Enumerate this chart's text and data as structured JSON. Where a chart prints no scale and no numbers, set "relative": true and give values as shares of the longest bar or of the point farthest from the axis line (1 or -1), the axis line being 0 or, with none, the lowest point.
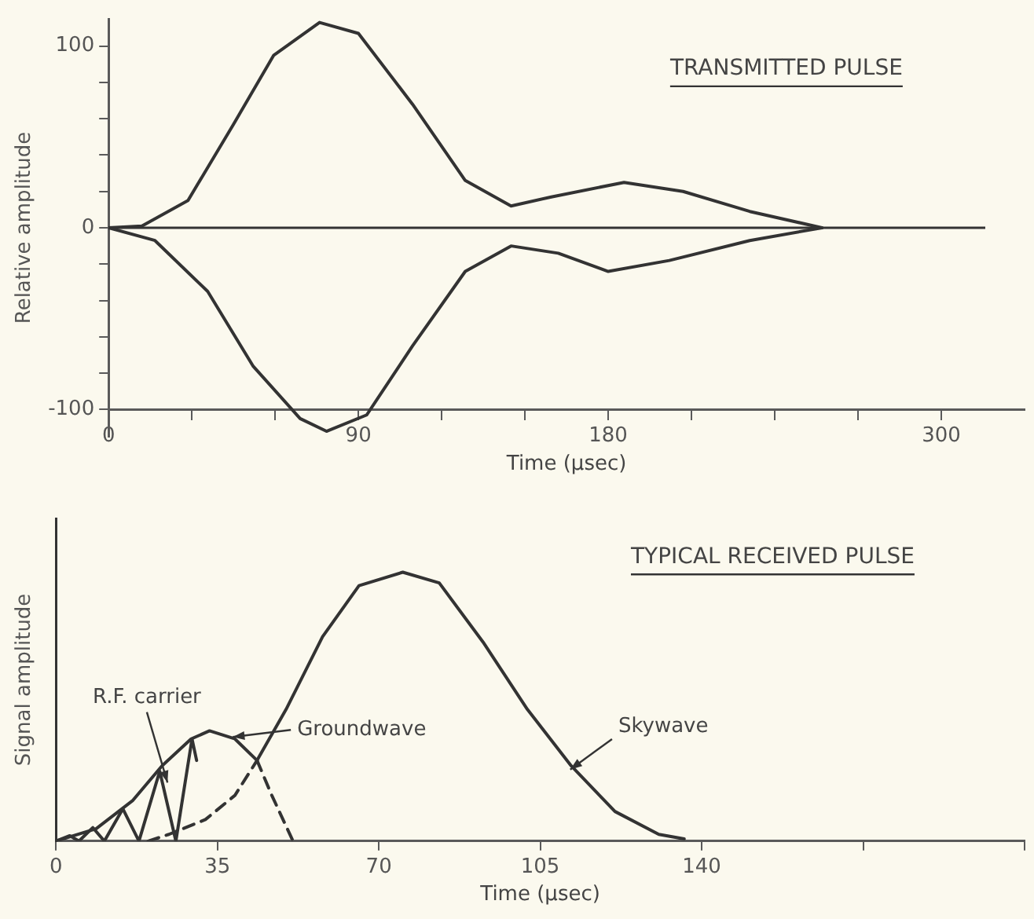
{
  "chart_data": [
    {
      "type": "line",
      "title": "TRANSMITTED PULSE",
      "xlabel": "Time (µsec)",
      "ylabel": "Relative amplitude",
      "xlim": [
        0,
        330
      ],
      "ylim": [
        -115,
        115
      ],
      "xticks": [
        0,
        {
          "value": 30,
          "label": null
        },
        {
          "value": 60,
          "label": null
        },
        90,
        {
          "value": 120,
          "label": null
        },
        {
          "value": 150,
          "label": null
        },
        180,
        {
          "value": 210,
          "label": null
        },
        {
          "value": 240,
          "label": null
        },
        {
          "value": 270,
          "label": null
        },
        300
      ],
      "yticks": [
        -100,
        {
          "value": -80,
          "label": null
        },
        {
          "value": -60,
          "label": null
        },
        {
          "value": -40,
          "label": null
        },
        {
          "value": -20,
          "label": null
        },
        0,
        {
          "value": 20,
          "label": null
        },
        {
          "value": 40,
          "label": null
        },
        {
          "value": 60,
          "label": null
        },
        {
          "value": 80,
          "label": null
        },
        100
      ],
      "grid": false,
      "legend": false,
      "line_style": "solid",
      "ref_lines": [
        {
          "axis": "y",
          "value": 0,
          "color": "#333333"
        }
      ],
      "series": [
        {
          "color": "#333333",
          "x": [
            0,
            12,
            28.6,
            45,
            59.5,
            76,
            90,
            109.5,
            128.5,
            145,
            159.5,
            185.7,
            207,
            231,
            257
          ],
          "values": [
            0,
            1,
            15,
            57,
            95,
            113,
            107,
            68,
            26,
            12,
            17,
            25,
            20,
            9,
            0
          ]
        },
        {
          "color": "#333333",
          "x": [
            0,
            16.7,
            35.7,
            52,
            69,
            78.5,
            93,
            109.5,
            128.5,
            145,
            162,
            180,
            202,
            231,
            257
          ],
          "values": [
            0,
            -7,
            -35,
            -76,
            -105,
            -112,
            -103,
            -65,
            -24,
            -10,
            -14,
            -24,
            -18,
            -7,
            0
          ]
        }
      ]
    },
    {
      "type": "line",
      "title": "TYPICAL RECEIVED PULSE",
      "xlabel": "Time (µsec)",
      "ylabel": "Signal amplitude",
      "relative": true,
      "xlim": [
        0,
        210
      ],
      "xticks": [
        0,
        35,
        70,
        105,
        140,
        {
          "value": 175,
          "label": null
        },
        {
          "value": 210,
          "label": null
        }
      ],
      "grid": false,
      "legend": false,
      "annotations": [
        {
          "text": "R.F. carrier",
          "x": 23.8,
          "y": 0.24
        },
        {
          "text": "Groundwave",
          "x": 39.7,
          "y": 0.39
        },
        {
          "text": "Skywave",
          "x": 112.6,
          "y": 0.28
        }
      ],
      "series": [
        {
          "color": "#333333",
          "line_style": "solid",
          "x": [
            0,
            8.7,
            16.6,
            23,
            29.3,
            33.3,
            38.8,
            43.6
          ],
          "values": [
            0,
            0.046,
            0.15,
            0.28,
            0.38,
            0.41,
            0.38,
            0.3
          ]
        },
        {
          "color": "#333333",
          "line_style": "dashed",
          "x": [
            43.6,
            46.8,
            51.4
          ],
          "values": [
            0.3,
            0.17,
            0
          ]
        },
        {
          "color": "#333333",
          "line_style": "dashed",
          "x": [
            20,
            24.5,
            32.4,
            38.8,
            43.6
          ],
          "values": [
            0,
            0.025,
            0.08,
            0.17,
            0.3
          ]
        },
        {
          "color": "#333333",
          "line_style": "solid",
          "x": [
            43.6,
            49.9,
            57.8,
            65.7,
            75.2,
            83.1,
            92.6,
            102.2,
            111.7,
            121.2,
            130.7,
            136.2
          ],
          "values": [
            0.3,
            0.49,
            0.76,
            0.95,
            1,
            0.96,
            0.74,
            0.49,
            0.28,
            0.11,
            0.025,
            0.008
          ]
        },
        {
          "color": "#333333",
          "line_style": "solid",
          "x": [
            0,
            3,
            5,
            8,
            10.5,
            14.5,
            18,
            22.5,
            26,
            29.5,
            30.5
          ],
          "values": [
            0,
            0.02,
            0,
            0.05,
            0,
            0.12,
            0,
            0.26,
            0,
            0.38,
            0.3
          ]
        }
      ]
    }
  ]
}
